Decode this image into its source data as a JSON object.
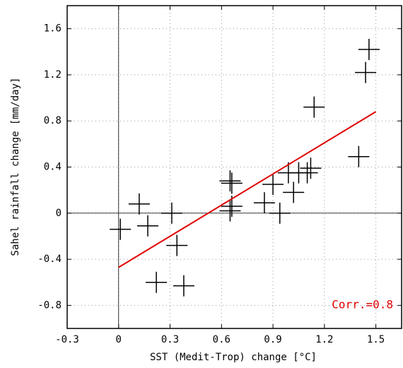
{
  "chart_data": {
    "type": "scatter",
    "xlabel": "SST (Medit-Trop) change [°C]",
    "ylabel": "Sahel rainfall change [mm/day]",
    "x": [
      0.01,
      0.12,
      0.17,
      0.22,
      0.31,
      0.34,
      0.38,
      0.65,
      0.66,
      0.66,
      0.65,
      0.85,
      0.9,
      0.94,
      0.99,
      1.02,
      1.05,
      1.1,
      1.12,
      1.14,
      1.4,
      1.44,
      1.46
    ],
    "values": [
      -0.14,
      0.08,
      -0.11,
      -0.6,
      0.0,
      -0.28,
      -0.63,
      0.28,
      0.26,
      0.06,
      0.02,
      0.09,
      0.25,
      0.0,
      0.35,
      0.18,
      0.35,
      0.35,
      0.39,
      0.92,
      0.49,
      1.22,
      1.42
    ],
    "color": "#000000",
    "fit": {
      "x": [
        0,
        1.5
      ],
      "values": [
        -0.47,
        0.88
      ],
      "color": "#e00000"
    },
    "annotation": "Corr.=0.8",
    "annotation_color": "#e00000",
    "xlim": [
      -0.3,
      1.65
    ],
    "ylim": [
      -1.0,
      1.8
    ],
    "xticks": [
      -0.3,
      0,
      0.3,
      0.6,
      0.9,
      1.2,
      1.5
    ],
    "yticks": [
      -0.8,
      -0.4,
      0,
      0.4,
      0.8,
      1.2,
      1.6
    ],
    "grid": true
  }
}
